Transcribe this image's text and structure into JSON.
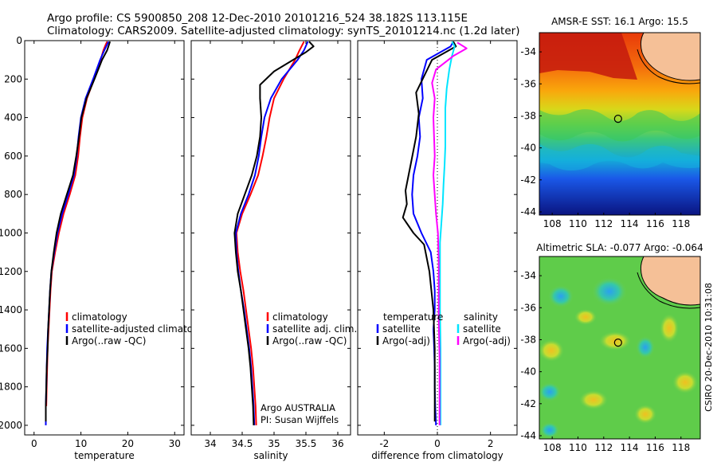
{
  "title_line1": "Argo profile: CS 5900850_208 12-Dec-2010 20101216_524 38.182S 113.115E",
  "title_line2": "Climatology: CARS2009. Satellite-adjusted climatology: synTS_20101214.nc (1.2d later)",
  "side_note": "CSIRO 20-Dec-2010 10:31:08",
  "colors": {
    "red": "#ff0000",
    "blue": "#0000ff",
    "black": "#000000",
    "cyan": "#00e5ff",
    "magenta": "#ff00ff",
    "land": "#f5c097"
  },
  "chart_data": [
    {
      "id": "temperature",
      "type": "line",
      "xlabel": "temperature",
      "ylabel": "",
      "xlim": [
        -2,
        32
      ],
      "ylim": [
        2050,
        0
      ],
      "xticks": [
        0,
        10,
        20,
        30
      ],
      "yticks": [
        0,
        200,
        400,
        600,
        800,
        1000,
        1200,
        1400,
        1600,
        1800,
        2000
      ],
      "legend": [
        "climatology",
        "satellite-adjusted climatology",
        "Argo(..raw -QC)"
      ],
      "legend_colors": [
        "#ff0000",
        "#0000ff",
        "#000000"
      ],
      "series": [
        {
          "color": "#ff0000",
          "points": [
            [
              15.6,
              5
            ],
            [
              15.3,
              20
            ],
            [
              14.8,
              50
            ],
            [
              14.2,
              100
            ],
            [
              12.8,
              200
            ],
            [
              11.3,
              300
            ],
            [
              10.3,
              400
            ],
            [
              9.8,
              500
            ],
            [
              9.4,
              600
            ],
            [
              8.8,
              700
            ],
            [
              7.6,
              800
            ],
            [
              6.3,
              900
            ],
            [
              5.3,
              1000
            ],
            [
              4.5,
              1100
            ],
            [
              3.8,
              1200
            ],
            [
              3.5,
              1300
            ],
            [
              3.3,
              1400
            ],
            [
              3.1,
              1500
            ],
            [
              2.9,
              1600
            ],
            [
              2.8,
              1700
            ],
            [
              2.7,
              1800
            ],
            [
              2.6,
              1900
            ]
          ]
        },
        {
          "color": "#0000ff",
          "points": [
            [
              15.9,
              5
            ],
            [
              15.6,
              20
            ],
            [
              15.0,
              50
            ],
            [
              14.1,
              100
            ],
            [
              12.6,
              200
            ],
            [
              11.0,
              300
            ],
            [
              10.0,
              400
            ],
            [
              9.5,
              500
            ],
            [
              9.1,
              600
            ],
            [
              8.5,
              700
            ],
            [
              7.3,
              800
            ],
            [
              6.0,
              900
            ],
            [
              5.0,
              1000
            ],
            [
              4.3,
              1100
            ],
            [
              3.7,
              1200
            ],
            [
              3.4,
              1300
            ],
            [
              3.2,
              1400
            ],
            [
              3.0,
              1500
            ],
            [
              2.8,
              1600
            ],
            [
              2.7,
              1700
            ],
            [
              2.6,
              1800
            ],
            [
              2.5,
              1900
            ],
            [
              2.5,
              2000
            ]
          ]
        },
        {
          "color": "#000000",
          "points": [
            [
              16.2,
              5
            ],
            [
              16.0,
              20
            ],
            [
              15.6,
              50
            ],
            [
              14.5,
              100
            ],
            [
              12.9,
              200
            ],
            [
              11.2,
              300
            ],
            [
              10.1,
              400
            ],
            [
              9.6,
              500
            ],
            [
              9.0,
              600
            ],
            [
              8.3,
              700
            ],
            [
              7.0,
              800
            ],
            [
              5.7,
              900
            ],
            [
              4.8,
              1000
            ],
            [
              4.2,
              1100
            ],
            [
              3.7,
              1200
            ],
            [
              3.4,
              1300
            ],
            [
              3.2,
              1400
            ],
            [
              3.0,
              1500
            ],
            [
              2.9,
              1600
            ],
            [
              2.7,
              1700
            ],
            [
              2.6,
              1800
            ],
            [
              2.5,
              1900
            ],
            [
              2.5,
              1980
            ]
          ]
        }
      ]
    },
    {
      "id": "salinity",
      "type": "line",
      "xlabel": "salinity",
      "ylabel": "",
      "xlim": [
        33.7,
        36.2
      ],
      "ylim": [
        2050,
        0
      ],
      "xticks": [
        34,
        34.5,
        35,
        35.5,
        36
      ],
      "yticks": [
        0,
        200,
        400,
        600,
        800,
        1000,
        1200,
        1400,
        1600,
        1800,
        2000
      ],
      "legend": [
        "climatology",
        "satellite adj. clim.",
        "Argo(..raw -QC)"
      ],
      "legend_colors": [
        "#ff0000",
        "#0000ff",
        "#000000"
      ],
      "annotation": [
        "Argo AUSTRALIA",
        "PI: Susan Wijffels"
      ],
      "series": [
        {
          "color": "#ff0000",
          "points": [
            [
              35.47,
              5
            ],
            [
              35.4,
              50
            ],
            [
              35.33,
              100
            ],
            [
              35.15,
              200
            ],
            [
              35.0,
              300
            ],
            [
              34.93,
              400
            ],
            [
              34.88,
              500
            ],
            [
              34.82,
              600
            ],
            [
              34.75,
              700
            ],
            [
              34.63,
              800
            ],
            [
              34.5,
              900
            ],
            [
              34.41,
              1000
            ],
            [
              34.43,
              1100
            ],
            [
              34.47,
              1200
            ],
            [
              34.52,
              1300
            ],
            [
              34.56,
              1400
            ],
            [
              34.6,
              1500
            ],
            [
              34.64,
              1600
            ],
            [
              34.67,
              1700
            ],
            [
              34.69,
              1800
            ],
            [
              34.71,
              1900
            ],
            [
              34.72,
              2000
            ]
          ]
        },
        {
          "color": "#0000ff",
          "points": [
            [
              35.53,
              5
            ],
            [
              35.47,
              50
            ],
            [
              35.37,
              100
            ],
            [
              35.12,
              200
            ],
            [
              34.95,
              300
            ],
            [
              34.85,
              400
            ],
            [
              34.8,
              500
            ],
            [
              34.76,
              600
            ],
            [
              34.7,
              700
            ],
            [
              34.6,
              800
            ],
            [
              34.48,
              900
            ],
            [
              34.4,
              1000
            ],
            [
              34.41,
              1100
            ],
            [
              34.44,
              1200
            ],
            [
              34.48,
              1300
            ],
            [
              34.53,
              1400
            ],
            [
              34.57,
              1500
            ],
            [
              34.61,
              1600
            ],
            [
              34.64,
              1700
            ],
            [
              34.66,
              1800
            ],
            [
              34.68,
              1900
            ],
            [
              34.69,
              2000
            ]
          ]
        },
        {
          "color": "#000000",
          "points": [
            [
              35.55,
              5
            ],
            [
              35.62,
              30
            ],
            [
              35.5,
              60
            ],
            [
              35.3,
              100
            ],
            [
              35.0,
              160
            ],
            [
              34.78,
              230
            ],
            [
              34.78,
              300
            ],
            [
              34.8,
              400
            ],
            [
              34.78,
              500
            ],
            [
              34.73,
              600
            ],
            [
              34.65,
              700
            ],
            [
              34.54,
              800
            ],
            [
              34.43,
              900
            ],
            [
              34.38,
              1000
            ],
            [
              34.4,
              1100
            ],
            [
              34.43,
              1200
            ],
            [
              34.48,
              1300
            ],
            [
              34.52,
              1400
            ],
            [
              34.56,
              1500
            ],
            [
              34.6,
              1600
            ],
            [
              34.63,
              1700
            ],
            [
              34.65,
              1800
            ],
            [
              34.67,
              1900
            ],
            [
              34.68,
              2000
            ]
          ]
        }
      ]
    },
    {
      "id": "difference",
      "type": "line",
      "xlabel": "difference from climatology",
      "ylabel": "",
      "xlim": [
        -3,
        3
      ],
      "ylim": [
        2050,
        0
      ],
      "xticks": [
        -2,
        0,
        2
      ],
      "yticks": [
        0,
        200,
        400,
        600,
        800,
        1000,
        1200,
        1400,
        1600,
        1800,
        2000
      ],
      "legend_headers": [
        "temperature",
        "salinity"
      ],
      "legend": [
        "satellite",
        "Argo(-adj)",
        "satellite",
        "Argo(-adj)"
      ],
      "legend_colors": [
        "#0000ff",
        "#000000",
        "#00e5ff",
        "#ff00ff"
      ],
      "series": [
        {
          "color": "#0000ff",
          "points": [
            [
              0.6,
              5
            ],
            [
              0.5,
              30
            ],
            [
              -0.4,
              100
            ],
            [
              -0.6,
              200
            ],
            [
              -0.55,
              300
            ],
            [
              -0.7,
              400
            ],
            [
              -0.65,
              500
            ],
            [
              -0.75,
              600
            ],
            [
              -0.9,
              700
            ],
            [
              -0.95,
              800
            ],
            [
              -0.9,
              900
            ],
            [
              -0.6,
              1000
            ],
            [
              -0.25,
              1100
            ],
            [
              -0.15,
              1200
            ],
            [
              -0.1,
              1300
            ],
            [
              -0.1,
              1400
            ],
            [
              -0.15,
              1500
            ],
            [
              -0.12,
              1600
            ],
            [
              -0.1,
              1700
            ],
            [
              -0.1,
              1800
            ],
            [
              -0.08,
              1900
            ],
            [
              -0.05,
              2000
            ]
          ]
        },
        {
          "color": "#000000",
          "points": [
            [
              0.6,
              5
            ],
            [
              0.7,
              30
            ],
            [
              -0.2,
              100
            ],
            [
              -0.8,
              270
            ],
            [
              -0.7,
              380
            ],
            [
              -0.8,
              500
            ],
            [
              -1.0,
              640
            ],
            [
              -1.2,
              780
            ],
            [
              -1.15,
              850
            ],
            [
              -1.3,
              920
            ],
            [
              -0.9,
              1000
            ],
            [
              -0.5,
              1060
            ],
            [
              -0.3,
              1200
            ],
            [
              -0.15,
              1400
            ],
            [
              -0.1,
              1600
            ],
            [
              -0.1,
              1800
            ],
            [
              -0.1,
              1980
            ]
          ]
        },
        {
          "color": "#00e5ff",
          "points": [
            [
              0.55,
              5
            ],
            [
              0.65,
              30
            ],
            [
              0.55,
              80
            ],
            [
              0.45,
              150
            ],
            [
              0.35,
              250
            ],
            [
              0.3,
              350
            ],
            [
              0.3,
              450
            ],
            [
              0.3,
              550
            ],
            [
              0.27,
              650
            ],
            [
              0.23,
              750
            ],
            [
              0.2,
              850
            ],
            [
              0.15,
              950
            ],
            [
              0.1,
              1050
            ],
            [
              0.1,
              1200
            ],
            [
              0.1,
              1400
            ],
            [
              0.12,
              1600
            ],
            [
              0.12,
              1800
            ],
            [
              0.12,
              2000
            ]
          ]
        },
        {
          "color": "#ff00ff",
          "points": [
            [
              0.75,
              10
            ],
            [
              1.1,
              40
            ],
            [
              0.6,
              80
            ],
            [
              -0.05,
              150
            ],
            [
              -0.2,
              220
            ],
            [
              -0.1,
              300
            ],
            [
              -0.15,
              400
            ],
            [
              -0.1,
              600
            ],
            [
              -0.15,
              700
            ],
            [
              -0.05,
              900
            ],
            [
              0.02,
              1000
            ],
            [
              0.05,
              1150
            ],
            [
              0.05,
              1300
            ],
            [
              0.05,
              1450
            ],
            [
              0.08,
              1650
            ],
            [
              0.08,
              1850
            ],
            [
              0.08,
              2000
            ]
          ]
        }
      ]
    },
    {
      "id": "sst_map",
      "type": "heatmap",
      "title": "AMSR-E SST: 16.1 Argo: 15.5",
      "xlim": [
        107,
        119.5
      ],
      "ylim": [
        -44.2,
        -32.8
      ],
      "xticks": [
        108,
        110,
        112,
        114,
        116,
        118
      ],
      "yticks": [
        -34,
        -36,
        -38,
        -40,
        -42,
        -44
      ],
      "marker": [
        113.115,
        -38.182
      ]
    },
    {
      "id": "sla_map",
      "type": "heatmap",
      "title": "Altimetric SLA: -0.077 Argo: -0.064",
      "xlim": [
        107,
        119.5
      ],
      "ylim": [
        -44.2,
        -32.8
      ],
      "xticks": [
        108,
        110,
        112,
        114,
        116,
        118
      ],
      "yticks": [
        -34,
        -36,
        -38,
        -40,
        -42,
        -44
      ],
      "marker": [
        113.115,
        -38.182
      ]
    }
  ]
}
